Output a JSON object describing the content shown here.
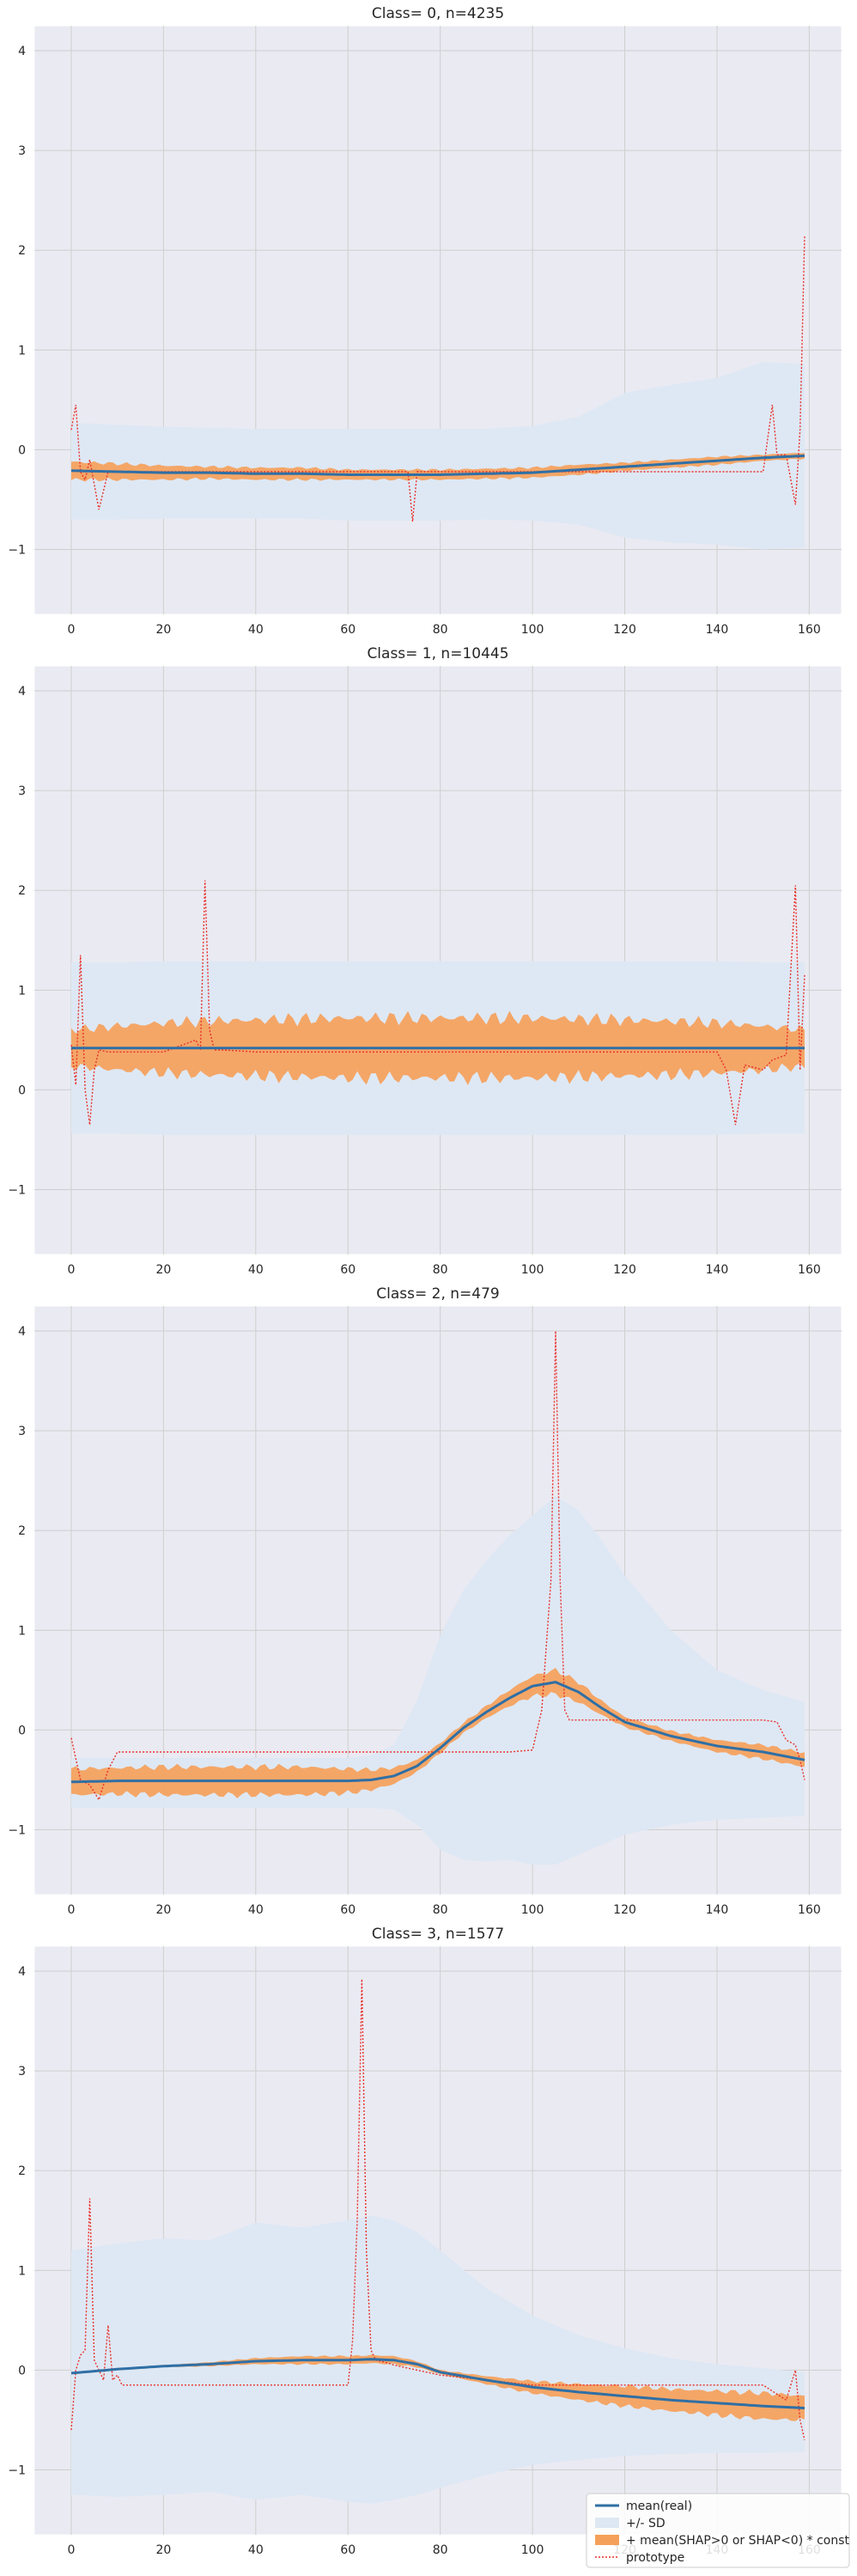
{
  "colors": {
    "background": "#eaeaf2",
    "grid": "#cfcfcf",
    "mean_line": "#2f6fa5",
    "sd_band": "#dde8f3",
    "shap_band": "#f5a05a",
    "prototype": "#e8302a"
  },
  "legend": {
    "placement": "bottom-right",
    "items": [
      {
        "label": "mean(real)",
        "style": "line",
        "color": "#2f6fa5"
      },
      {
        "label": "+/- SD",
        "style": "patch",
        "color": "#dde8f3"
      },
      {
        "label": "+ mean(SHAP>0 or SHAP<0) * const",
        "style": "patch",
        "color": "#f5a05a"
      },
      {
        "label": "prototype",
        "style": "dotted",
        "color": "#e8302a"
      }
    ]
  },
  "chart_data": [
    {
      "type": "line",
      "title": "Class= 0, n=4235",
      "xlim": [
        -8,
        167
      ],
      "ylim": [
        -1.65,
        4.25
      ],
      "xticks": [
        "0",
        "20",
        "40",
        "60",
        "80",
        "100",
        "120",
        "140",
        "160"
      ],
      "yticks": [
        "−1",
        "0",
        "1",
        "2",
        "3",
        "4"
      ],
      "grid": true,
      "x": [
        0,
        10,
        20,
        30,
        40,
        50,
        60,
        70,
        80,
        90,
        100,
        110,
        120,
        130,
        140,
        150,
        159
      ],
      "mean": [
        -0.21,
        -0.22,
        -0.23,
        -0.23,
        -0.24,
        -0.24,
        -0.25,
        -0.25,
        -0.25,
        -0.24,
        -0.23,
        -0.2,
        -0.17,
        -0.14,
        -0.11,
        -0.08,
        -0.06
      ],
      "sd_upper": [
        0.27,
        0.25,
        0.23,
        0.22,
        0.21,
        0.21,
        0.21,
        0.21,
        0.21,
        0.21,
        0.24,
        0.33,
        0.57,
        0.65,
        0.72,
        0.88,
        0.86
      ],
      "sd_lower": [
        -0.7,
        -0.7,
        -0.69,
        -0.69,
        -0.69,
        -0.69,
        -0.71,
        -0.71,
        -0.71,
        -0.7,
        -0.71,
        -0.75,
        -0.88,
        -0.93,
        -0.95,
        -1.0,
        -0.98
      ],
      "shap_halfwidth": [
        0.09,
        0.08,
        0.07,
        0.06,
        0.06,
        0.06,
        0.05,
        0.05,
        0.05,
        0.05,
        0.05,
        0.05,
        0.04,
        0.04,
        0.04,
        0.03,
        0.03
      ],
      "prototype": {
        "x": [
          0,
          1,
          2,
          3,
          4,
          6,
          8,
          10,
          20,
          40,
          60,
          73,
          74,
          75,
          80,
          100,
          110,
          120,
          130,
          140,
          145,
          150,
          152,
          153,
          155,
          157,
          158,
          159
        ],
        "y": [
          0.2,
          0.45,
          -0.22,
          -0.3,
          -0.1,
          -0.6,
          -0.22,
          -0.22,
          -0.22,
          -0.22,
          -0.22,
          -0.22,
          -0.72,
          -0.22,
          -0.22,
          -0.22,
          -0.22,
          -0.22,
          -0.22,
          -0.22,
          -0.22,
          -0.22,
          0.45,
          -0.05,
          -0.05,
          -0.55,
          0.2,
          2.15
        ]
      }
    },
    {
      "type": "line",
      "title": "Class= 1, n=10445",
      "xlim": [
        -8,
        167
      ],
      "ylim": [
        -1.65,
        4.25
      ],
      "xticks": [
        "0",
        "20",
        "40",
        "60",
        "80",
        "100",
        "120",
        "140",
        "160"
      ],
      "yticks": [
        "−1",
        "0",
        "1",
        "2",
        "3",
        "4"
      ],
      "grid": true,
      "x": [
        0,
        10,
        20,
        30,
        40,
        50,
        60,
        70,
        80,
        90,
        100,
        110,
        120,
        130,
        140,
        150,
        159
      ],
      "mean": [
        0.42,
        0.42,
        0.42,
        0.42,
        0.42,
        0.42,
        0.42,
        0.42,
        0.42,
        0.42,
        0.42,
        0.42,
        0.42,
        0.42,
        0.42,
        0.42,
        0.42
      ],
      "sd_upper": [
        1.28,
        1.28,
        1.29,
        1.29,
        1.29,
        1.29,
        1.29,
        1.29,
        1.29,
        1.29,
        1.29,
        1.29,
        1.29,
        1.29,
        1.29,
        1.28,
        1.28
      ],
      "sd_lower": [
        -0.44,
        -0.44,
        -0.45,
        -0.45,
        -0.45,
        -0.45,
        -0.45,
        -0.45,
        -0.45,
        -0.45,
        -0.45,
        -0.45,
        -0.45,
        -0.45,
        -0.45,
        -0.44,
        -0.44
      ],
      "shap_halfwidth": [
        0.18,
        0.22,
        0.25,
        0.27,
        0.28,
        0.29,
        0.3,
        0.3,
        0.3,
        0.3,
        0.3,
        0.29,
        0.28,
        0.27,
        0.25,
        0.22,
        0.18
      ],
      "prototype": {
        "x": [
          0,
          1,
          2,
          3,
          4,
          5,
          6,
          8,
          10,
          20,
          27,
          28,
          29,
          30,
          31,
          33,
          40,
          60,
          80,
          100,
          120,
          135,
          140,
          142,
          144,
          146,
          150,
          152,
          155,
          157,
          158,
          159
        ],
        "y": [
          0.45,
          0.05,
          1.35,
          0.0,
          -0.35,
          0.2,
          0.4,
          0.38,
          0.38,
          0.38,
          0.5,
          0.4,
          2.1,
          0.6,
          0.4,
          0.4,
          0.38,
          0.38,
          0.38,
          0.38,
          0.38,
          0.38,
          0.38,
          0.2,
          -0.35,
          0.25,
          0.2,
          0.3,
          0.35,
          2.05,
          0.2,
          1.15
        ]
      }
    },
    {
      "type": "line",
      "title": "Class= 2, n=479",
      "xlim": [
        -8,
        167
      ],
      "ylim": [
        -1.65,
        4.25
      ],
      "xticks": [
        "0",
        "20",
        "40",
        "60",
        "80",
        "100",
        "120",
        "140",
        "160"
      ],
      "yticks": [
        "−1",
        "0",
        "1",
        "2",
        "3",
        "4"
      ],
      "grid": true,
      "x": [
        0,
        10,
        20,
        30,
        40,
        50,
        60,
        65,
        70,
        75,
        80,
        85,
        90,
        95,
        100,
        105,
        110,
        115,
        120,
        130,
        140,
        150,
        159
      ],
      "mean": [
        -0.52,
        -0.51,
        -0.51,
        -0.51,
        -0.51,
        -0.51,
        -0.51,
        -0.5,
        -0.46,
        -0.36,
        -0.18,
        0.02,
        0.18,
        0.32,
        0.44,
        0.48,
        0.38,
        0.22,
        0.08,
        -0.06,
        -0.16,
        -0.22,
        -0.3
      ],
      "sd_upper": [
        -0.28,
        -0.28,
        -0.28,
        -0.28,
        -0.28,
        -0.28,
        -0.28,
        -0.25,
        -0.15,
        0.3,
        0.95,
        1.4,
        1.7,
        1.95,
        2.15,
        2.35,
        2.2,
        1.9,
        1.55,
        1.0,
        0.6,
        0.4,
        0.28
      ],
      "sd_lower": [
        -0.78,
        -0.78,
        -0.78,
        -0.78,
        -0.78,
        -0.78,
        -0.78,
        -0.78,
        -0.8,
        -0.95,
        -1.2,
        -1.3,
        -1.32,
        -1.3,
        -1.35,
        -1.35,
        -1.25,
        -1.15,
        -1.05,
        -0.95,
        -0.9,
        -0.88,
        -0.86
      ],
      "shap_halfwidth": [
        0.13,
        0.13,
        0.14,
        0.14,
        0.14,
        0.14,
        0.12,
        0.1,
        0.08,
        0.06,
        0.05,
        0.05,
        0.06,
        0.08,
        0.1,
        0.12,
        0.1,
        0.07,
        0.05,
        0.05,
        0.06,
        0.07,
        0.07
      ],
      "prototype": {
        "x": [
          0,
          2,
          4,
          6,
          8,
          10,
          20,
          40,
          60,
          70,
          75,
          80,
          90,
          95,
          100,
          102,
          104,
          105,
          106,
          107,
          108,
          110,
          120,
          140,
          150,
          153,
          155,
          157,
          158,
          159
        ],
        "y": [
          -0.08,
          -0.5,
          -0.55,
          -0.7,
          -0.4,
          -0.22,
          -0.22,
          -0.22,
          -0.22,
          -0.22,
          -0.22,
          -0.22,
          -0.22,
          -0.22,
          -0.2,
          0.2,
          1.5,
          4.0,
          1.5,
          0.2,
          0.1,
          0.1,
          0.1,
          0.1,
          0.1,
          0.08,
          -0.1,
          -0.15,
          -0.3,
          -0.5
        ]
      }
    },
    {
      "type": "line",
      "title": "Class= 3, n=1577",
      "xlim": [
        -8,
        167
      ],
      "ylim": [
        -1.65,
        4.25
      ],
      "xticks": [
        "0",
        "20",
        "40",
        "60",
        "80",
        "100",
        "120",
        "140",
        "160"
      ],
      "yticks": [
        "−1",
        "0",
        "1",
        "2",
        "3",
        "4"
      ],
      "grid": true,
      "x": [
        0,
        10,
        20,
        30,
        40,
        50,
        60,
        65,
        70,
        75,
        80,
        90,
        100,
        110,
        120,
        130,
        140,
        150,
        159
      ],
      "mean": [
        -0.03,
        0.01,
        0.04,
        0.06,
        0.09,
        0.1,
        0.1,
        0.11,
        0.1,
        0.06,
        -0.02,
        -0.1,
        -0.17,
        -0.22,
        -0.26,
        -0.3,
        -0.33,
        -0.36,
        -0.38
      ],
      "sd_upper": [
        1.2,
        1.27,
        1.32,
        1.3,
        1.48,
        1.43,
        1.5,
        1.55,
        1.5,
        1.38,
        1.2,
        0.82,
        0.55,
        0.35,
        0.22,
        0.12,
        0.06,
        0.02,
        -0.02
      ],
      "sd_lower": [
        -1.25,
        -1.27,
        -1.25,
        -1.22,
        -1.3,
        -1.25,
        -1.32,
        -1.34,
        -1.3,
        -1.25,
        -1.18,
        -1.05,
        -0.95,
        -0.9,
        -0.86,
        -0.84,
        -0.83,
        -0.83,
        -0.82
      ],
      "shap_halfwidth": [
        0.01,
        0.01,
        0.01,
        0.02,
        0.03,
        0.04,
        0.04,
        0.04,
        0.04,
        0.03,
        0.02,
        0.04,
        0.06,
        0.08,
        0.1,
        0.11,
        0.12,
        0.13,
        0.12
      ],
      "prototype": {
        "x": [
          0,
          1,
          2,
          3,
          4,
          5,
          6,
          7,
          8,
          9,
          10,
          11,
          20,
          40,
          60,
          61,
          62,
          63,
          64,
          65,
          66,
          68,
          70,
          80,
          100,
          120,
          140,
          150,
          155,
          157,
          158,
          159
        ],
        "y": [
          -0.6,
          0.0,
          0.15,
          0.2,
          1.72,
          0.1,
          0.0,
          -0.1,
          0.45,
          -0.1,
          -0.05,
          -0.15,
          -0.15,
          -0.15,
          -0.15,
          0.3,
          1.5,
          3.92,
          1.2,
          0.2,
          0.1,
          0.08,
          0.05,
          -0.05,
          -0.15,
          -0.15,
          -0.15,
          -0.15,
          -0.3,
          0.0,
          -0.5,
          -0.7
        ]
      }
    }
  ]
}
